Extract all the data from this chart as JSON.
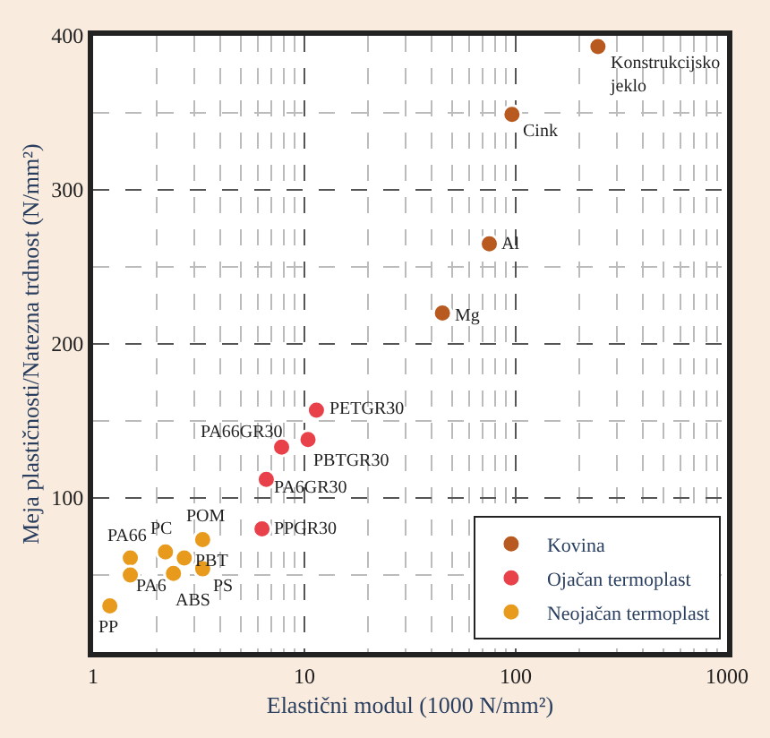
{
  "chart_data": {
    "type": "scatter",
    "xlabel": "Elastični modul (1000 N/mm²)",
    "ylabel": "Meja plastičnosti/Natezna trdnost (N/mm²)",
    "log": "x",
    "xlim": [
      1,
      1000
    ],
    "xticks": [
      1,
      10,
      100,
      1000
    ],
    "ylim": [
      0,
      400
    ],
    "yticks": [
      {
        "value": 0,
        "label": null
      },
      100,
      200,
      300,
      400
    ],
    "grid": true,
    "legend": "bottom right",
    "marker": "circle",
    "series": [
      {
        "name": "Kovina",
        "color": "#b85a20",
        "x": [
          245,
          96,
          75,
          45
        ],
        "values": [
          393,
          349,
          265,
          220
        ]
      },
      {
        "name": "Ojačan termoplast",
        "color": "#e8414a",
        "x": [
          11.4,
          10.4,
          7.8,
          6.6,
          6.3
        ],
        "values": [
          157,
          138,
          133,
          112,
          80
        ]
      },
      {
        "name": "Neojačan termoplast",
        "color": "#e89a1c",
        "x": [
          3.3,
          2.2,
          2.7,
          3.3,
          2.4,
          1.5,
          1.5,
          1.2
        ],
        "values": [
          73,
          65,
          61,
          54,
          51,
          61,
          50,
          30
        ]
      }
    ],
    "annotations": [
      {
        "text": "Konstrukcijsko\njeklo",
        "x": 245,
        "y": 393
      },
      {
        "text": "Cink",
        "x": 96,
        "y": 349
      },
      {
        "text": "Al",
        "x": 75,
        "y": 265
      },
      {
        "text": "Mg",
        "x": 45,
        "y": 220
      },
      {
        "text": "PETGR30",
        "x": 11.4,
        "y": 157
      },
      {
        "text": "PBTGR30",
        "x": 10.4,
        "y": 138
      },
      {
        "text": "PA66GR30",
        "x": 7.8,
        "y": 133
      },
      {
        "text": "PA6GR30",
        "x": 6.6,
        "y": 112
      },
      {
        "text": "PPGR30",
        "x": 6.3,
        "y": 80
      },
      {
        "text": "POM",
        "x": 3.3,
        "y": 73
      },
      {
        "text": "PC",
        "x": 2.2,
        "y": 65
      },
      {
        "text": "PBT",
        "x": 2.7,
        "y": 61
      },
      {
        "text": "PS",
        "x": 3.3,
        "y": 54
      },
      {
        "text": "ABS",
        "x": 2.4,
        "y": 51
      },
      {
        "text": "PA66",
        "x": 1.5,
        "y": 61
      },
      {
        "text": "PA6",
        "x": 1.5,
        "y": 50
      },
      {
        "text": "PP",
        "x": 1.2,
        "y": 30
      }
    ]
  }
}
